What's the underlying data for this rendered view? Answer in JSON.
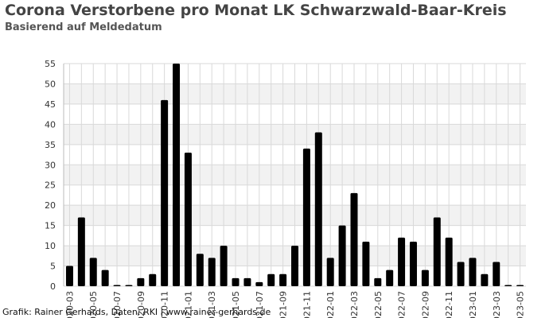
{
  "chart_data": {
    "type": "bar",
    "title": "Corona Verstorbene pro Monat LK Schwarzwald-Baar-Kreis",
    "subtitle": "Basierend auf Meldedatum",
    "xlabel": "",
    "ylabel": "",
    "ylim": [
      0,
      55
    ],
    "yticks": [
      0,
      5,
      10,
      15,
      20,
      25,
      30,
      35,
      40,
      45,
      50,
      55
    ],
    "grid": true,
    "legend": "none",
    "categories": [
      "2020-03",
      "2020-04",
      "2020-05",
      "2020-06",
      "2020-07",
      "2020-08",
      "2020-09",
      "2020-10",
      "2020-11",
      "2020-12",
      "2021-01",
      "2021-02",
      "2021-03",
      "2021-04",
      "2021-05",
      "2021-06",
      "2021-07",
      "2021-08",
      "2021-09",
      "2021-10",
      "2021-11",
      "2021-12",
      "2022-01",
      "2022-02",
      "2022-03",
      "2022-04",
      "2022-05",
      "2022-06",
      "2022-07",
      "2022-08",
      "2022-09",
      "2022-10",
      "2022-11",
      "2022-12",
      "2023-01",
      "2023-02",
      "2023-03",
      "2023-04",
      "2023-05"
    ],
    "tick_labels": [
      "2020-03",
      "2020-05",
      "2020-07",
      "2020-09",
      "2020-11",
      "2021-01",
      "2021-03",
      "2021-05",
      "2021-07",
      "2021-09",
      "2021-11",
      "2022-01",
      "2022-03",
      "2022-05",
      "2022-07",
      "2022-09",
      "2022-11",
      "2023-01",
      "2023-03",
      "2023-05"
    ],
    "values": [
      5,
      17,
      7,
      4,
      0,
      0,
      2,
      3,
      46,
      55,
      33,
      8,
      7,
      10,
      2,
      2,
      1,
      3,
      3,
      10,
      34,
      38,
      7,
      15,
      23,
      11,
      2,
      4,
      12,
      11,
      4,
      17,
      12,
      6,
      7,
      3,
      6,
      0,
      0
    ]
  },
  "credit": "Grafik: Rainer Gerhards, Daten: RKI | www.rainer-gerhards.de",
  "colors": {
    "bar": "#000000",
    "band": "#f2f2f2",
    "grid": "#d9d9d9",
    "axis_text": "#333333"
  }
}
